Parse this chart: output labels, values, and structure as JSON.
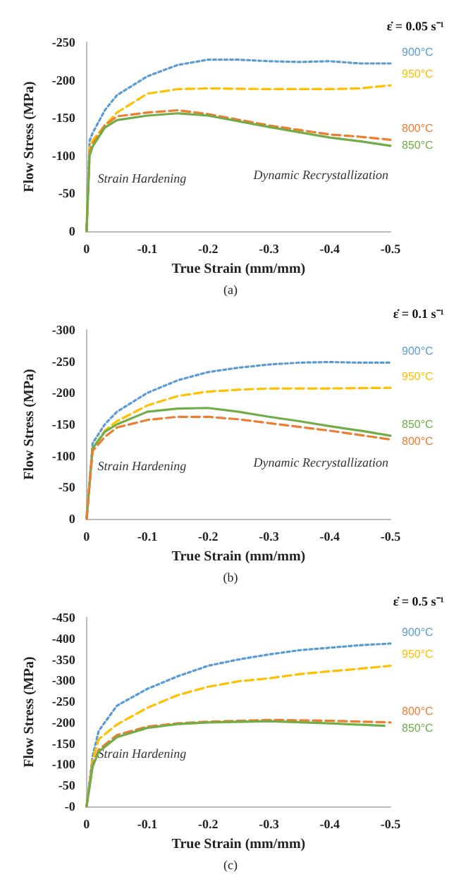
{
  "chart_data": [
    {
      "type": "line",
      "xlabel": "True Strain (mm/mm)",
      "ylabel": "Flow Stress (MPa)",
      "xlim": [
        0,
        -0.5
      ],
      "xticks": [
        0,
        -0.1,
        -0.2,
        -0.3,
        -0.4,
        -0.5
      ],
      "ylim": [
        0,
        -250
      ],
      "yticks": [
        0,
        -50,
        -100,
        -150,
        -200,
        -250
      ],
      "grid": false,
      "legend": false,
      "marker": "none",
      "annotations": [
        "ε̇ = 0.05 s⁻¹",
        "Strain Hardening",
        "Dynamic Recrystallization",
        "(a)"
      ],
      "series": [
        {
          "name": "900°C",
          "color": "#5b9bd5",
          "line_style": "dotted",
          "x": [
            0,
            -0.005,
            -0.01,
            -0.03,
            -0.05,
            -0.1,
            -0.15,
            -0.2,
            -0.25,
            -0.3,
            -0.35,
            -0.4,
            -0.45,
            -0.5
          ],
          "values": [
            0,
            -120,
            -130,
            -160,
            -180,
            -205,
            -220,
            -227,
            -227,
            -225,
            -224,
            -225,
            -222,
            -222
          ]
        },
        {
          "name": "950°C",
          "color": "#ffc000",
          "line_style": "dashed",
          "x": [
            0,
            -0.005,
            -0.01,
            -0.03,
            -0.05,
            -0.1,
            -0.15,
            -0.2,
            -0.3,
            -0.4,
            -0.45,
            -0.5
          ],
          "values": [
            0,
            -110,
            -120,
            -140,
            -157,
            -182,
            -188,
            -189,
            -188,
            -188,
            -189,
            -193
          ]
        },
        {
          "name": "800°C",
          "color": "#ed7d31",
          "line_style": "dashed",
          "x": [
            0,
            -0.005,
            -0.01,
            -0.03,
            -0.05,
            -0.1,
            -0.15,
            -0.2,
            -0.3,
            -0.4,
            -0.45,
            -0.5
          ],
          "values": [
            0,
            -105,
            -115,
            -140,
            -152,
            -157,
            -160,
            -155,
            -140,
            -128,
            -125,
            -121
          ]
        },
        {
          "name": "850°C",
          "color": "#70ad47",
          "line_style": "solid",
          "x": [
            0,
            -0.005,
            -0.01,
            -0.03,
            -0.05,
            -0.1,
            -0.15,
            -0.2,
            -0.3,
            -0.4,
            -0.45,
            -0.5
          ],
          "values": [
            0,
            -100,
            -112,
            -137,
            -147,
            -153,
            -156,
            -153,
            -138,
            -124,
            -119,
            -113
          ]
        }
      ]
    },
    {
      "type": "line",
      "xlabel": "True Strain (mm/mm)",
      "ylabel": "Flow Stress (MPa)",
      "xlim": [
        0,
        -0.5
      ],
      "xticks": [
        0,
        -0.1,
        -0.2,
        -0.3,
        -0.4,
        -0.5
      ],
      "ylim": [
        0,
        -300
      ],
      "yticks": [
        0,
        -50,
        -100,
        -150,
        -200,
        -250,
        -300
      ],
      "grid": false,
      "legend": false,
      "marker": "none",
      "annotations": [
        "ε̇ = 0.1 s⁻¹",
        "Strain Hardening",
        "Dynamic Recrystallization",
        "(b)"
      ],
      "series": [
        {
          "name": "900°C",
          "color": "#5b9bd5",
          "line_style": "dotted",
          "x": [
            0,
            -0.01,
            -0.03,
            -0.05,
            -0.1,
            -0.15,
            -0.2,
            -0.25,
            -0.3,
            -0.35,
            -0.4,
            -0.45,
            -0.5
          ],
          "values": [
            0,
            -120,
            -150,
            -170,
            -200,
            -220,
            -233,
            -240,
            -245,
            -248,
            -249,
            -248,
            -248
          ]
        },
        {
          "name": "950°C",
          "color": "#ffc000",
          "line_style": "dashed",
          "x": [
            0,
            -0.01,
            -0.03,
            -0.05,
            -0.1,
            -0.15,
            -0.2,
            -0.25,
            -0.3,
            -0.4,
            -0.5
          ],
          "values": [
            0,
            -112,
            -140,
            -155,
            -180,
            -195,
            -202,
            -205,
            -207,
            -207,
            -208
          ]
        },
        {
          "name": "850°C",
          "color": "#70ad47",
          "line_style": "solid",
          "x": [
            0,
            -0.01,
            -0.03,
            -0.05,
            -0.1,
            -0.15,
            -0.2,
            -0.25,
            -0.3,
            -0.35,
            -0.4,
            -0.45,
            -0.5
          ],
          "values": [
            0,
            -112,
            -138,
            -150,
            -170,
            -175,
            -176,
            -170,
            -162,
            -155,
            -147,
            -140,
            -132
          ]
        },
        {
          "name": "800°C",
          "color": "#ed7d31",
          "line_style": "dashed",
          "x": [
            0,
            -0.01,
            -0.03,
            -0.05,
            -0.1,
            -0.15,
            -0.2,
            -0.25,
            -0.3,
            -0.35,
            -0.4,
            -0.45,
            -0.5
          ],
          "values": [
            0,
            -108,
            -130,
            -145,
            -157,
            -162,
            -162,
            -158,
            -152,
            -146,
            -140,
            -133,
            -126
          ]
        }
      ]
    },
    {
      "type": "line",
      "xlabel": "True Strain (mm/mm)",
      "ylabel": "Flow Stress (MPa)",
      "xlim": [
        0,
        -0.5
      ],
      "xticks": [
        0,
        -0.1,
        -0.2,
        -0.3,
        -0.4,
        -0.5
      ],
      "ylim": [
        0,
        -450
      ],
      "yticks": [
        {
          "value": 0,
          "label": "-0"
        },
        -50,
        -100,
        -150,
        -200,
        -250,
        -300,
        -350,
        -400,
        -450
      ],
      "grid": false,
      "legend": false,
      "marker": "none",
      "annotations": [
        "ε̇ = 0.5 s⁻¹",
        "Strain Hardening",
        "(c)"
      ],
      "series": [
        {
          "name": "900°C",
          "color": "#5b9bd5",
          "line_style": "dotted",
          "x": [
            0,
            -0.01,
            -0.02,
            -0.05,
            -0.1,
            -0.15,
            -0.2,
            -0.25,
            -0.3,
            -0.35,
            -0.4,
            -0.45,
            -0.5
          ],
          "values": [
            0,
            -120,
            -180,
            -240,
            -280,
            -310,
            -335,
            -350,
            -362,
            -372,
            -378,
            -384,
            -388
          ]
        },
        {
          "name": "950°C",
          "color": "#ffc000",
          "line_style": "dashed",
          "x": [
            0,
            -0.01,
            -0.02,
            -0.05,
            -0.1,
            -0.15,
            -0.2,
            -0.25,
            -0.3,
            -0.35,
            -0.4,
            -0.45,
            -0.5
          ],
          "values": [
            0,
            -110,
            -160,
            -195,
            -235,
            -265,
            -285,
            -298,
            -305,
            -315,
            -322,
            -328,
            -335
          ]
        },
        {
          "name": "800°C",
          "color": "#ed7d31",
          "line_style": "dashed",
          "x": [
            0,
            -0.01,
            -0.02,
            -0.05,
            -0.1,
            -0.15,
            -0.2,
            -0.3,
            -0.4,
            -0.5
          ],
          "values": [
            0,
            -100,
            -135,
            -170,
            -190,
            -198,
            -202,
            -206,
            -204,
            -200
          ]
        },
        {
          "name": "850°C",
          "color": "#70ad47",
          "line_style": "solid",
          "x": [
            0,
            -0.01,
            -0.02,
            -0.05,
            -0.1,
            -0.15,
            -0.2,
            -0.3,
            -0.4,
            -0.49
          ],
          "values": [
            0,
            -95,
            -130,
            -165,
            -187,
            -196,
            -200,
            -203,
            -198,
            -192
          ]
        }
      ]
    }
  ]
}
